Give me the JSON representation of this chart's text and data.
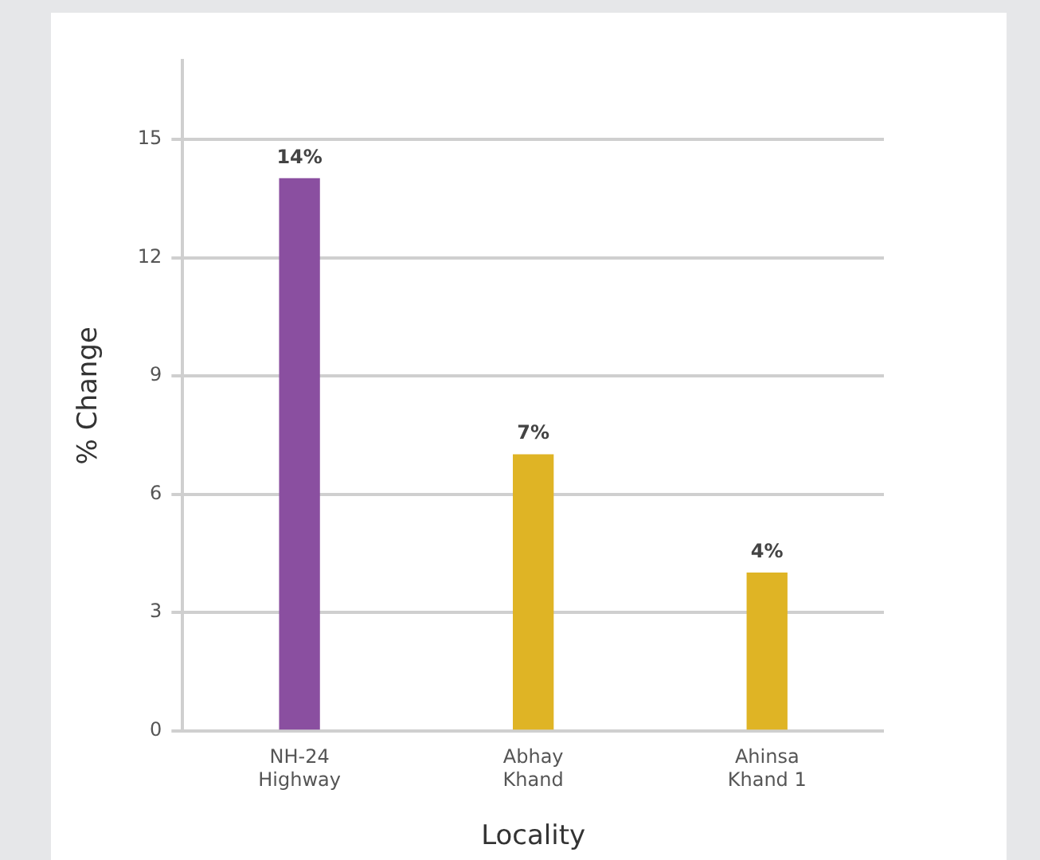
{
  "chart_data": {
    "type": "bar",
    "xlabel": "Locality",
    "ylabel": "% Change",
    "categories": [
      "NH-24 Highway",
      "Abhay Khand",
      "Ahinsa Khand 1"
    ],
    "values": [
      14,
      7,
      4
    ],
    "colors": [
      "#8a4fa0",
      "#dfb425",
      "#dfb425"
    ],
    "value_labels": [
      "14%",
      "7%",
      "4%"
    ],
    "ylim": [
      0,
      17
    ],
    "yticks": [
      0,
      3,
      6,
      9,
      12,
      15
    ],
    "grid": "y",
    "legend": false
  }
}
